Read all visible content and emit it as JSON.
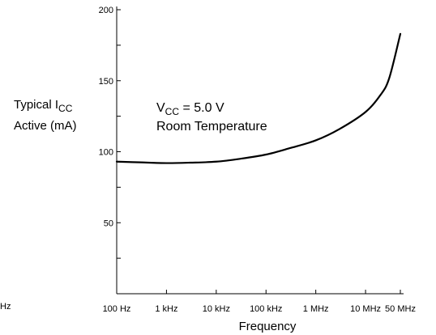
{
  "chart_data": {
    "type": "line",
    "title": "",
    "xlabel": "Frequency",
    "ylabel_line1": "Typical I",
    "ylabel_sub": "CC",
    "ylabel_line2": "Active (mA)",
    "x_scale": "log",
    "x_ticks": [
      "100 Hz",
      "1 kHz",
      "10 kHz",
      "100 kHz",
      "1 MHz",
      "10 MHz",
      "50 MHz"
    ],
    "x_tick_values": [
      100,
      1000,
      10000,
      100000,
      1000000,
      10000000,
      50000000
    ],
    "ylim": [
      0,
      200
    ],
    "y_ticks": [
      50,
      100,
      150,
      200
    ],
    "y_ticks_labeled": [
      "50",
      "100",
      "150",
      "200"
    ],
    "y_minor_ticks": [
      25,
      75,
      125,
      175
    ],
    "grid": false,
    "annotation": {
      "line1_main": "V",
      "line1_sub": "CC",
      "line1_rest": " = 5.0 V",
      "line2": "Room Temperature"
    },
    "series": [
      {
        "x": [
          100,
          300,
          1000,
          3000,
          10000,
          30000,
          100000,
          300000,
          1000000,
          3000000,
          10000000,
          20000000,
          30000000,
          50000000
        ],
        "values": [
          93,
          92.5,
          92,
          92.3,
          93,
          95,
          98,
          102.5,
          108,
          116,
          128,
          140,
          152,
          183
        ]
      }
    ],
    "stray_text": "Hz"
  }
}
